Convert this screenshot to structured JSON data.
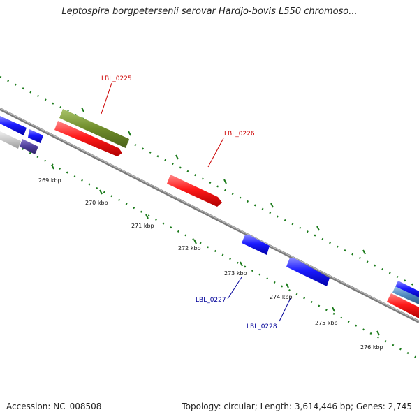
{
  "title": "Leptospira borgpetersenii serovar Hardjo-bovis L550 chromoso...",
  "footer": {
    "accession": "Accession: NC_008508",
    "summary": "Topology: circular; Length: 3,614,446 bp; Genes: 2,745"
  },
  "colors": {
    "forward_label": "#cc0000",
    "reverse_label": "#000099",
    "ticks": "#1a7a1a",
    "backbone": "#888888"
  },
  "scale_labels": [
    "269 kbp",
    "270 kbp",
    "271 kbp",
    "272 kbp",
    "273 kbp",
    "274 kbp",
    "275 kbp",
    "276 kbp"
  ],
  "gene_labels": {
    "lbl_0225": "LBL_0225",
    "lbl_0226": "LBL_0226",
    "lbl_0227": "LBL_0227",
    "lbl_0228": "LBL_0228"
  }
}
